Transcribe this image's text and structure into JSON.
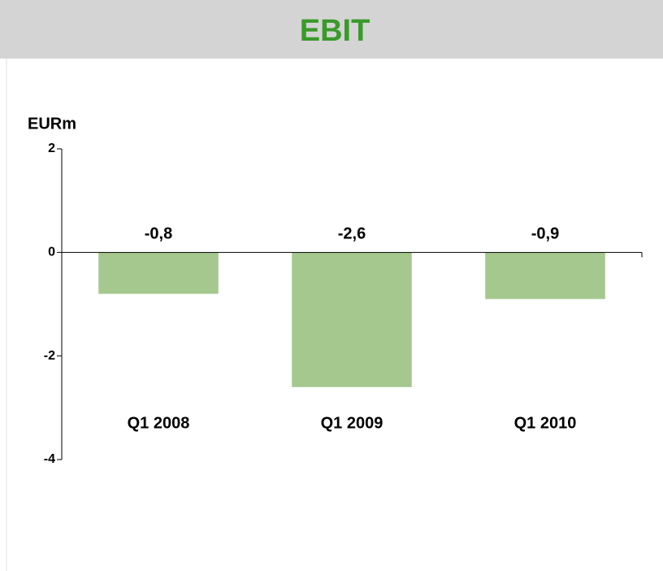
{
  "chart_data": {
    "type": "bar",
    "title": "EBIT",
    "y_label": "EURm",
    "categories": [
      "Q1 2008",
      "Q1 2009",
      "Q1 2010"
    ],
    "values": [
      -0.8,
      -2.6,
      -0.9
    ],
    "value_labels": [
      "-0,8",
      "-2,6",
      "-0,9"
    ],
    "color": "#a5c88f",
    "ylim": [
      -4,
      2
    ],
    "yticks": [
      2,
      0,
      -2,
      -4
    ],
    "grid": false
  }
}
